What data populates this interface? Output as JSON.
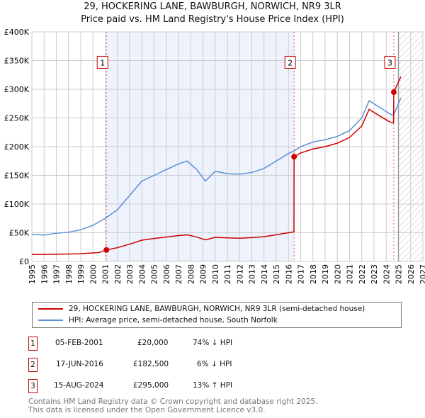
{
  "chart_data": {
    "type": "line",
    "title": "29, HOCKERING LANE, BAWBURGH, NORWICH, NR9 3LR",
    "subtitle": "Price paid vs. HM Land Registry's House Price Index (HPI)",
    "xlim": [
      1995,
      2027
    ],
    "ylim": [
      0,
      400000
    ],
    "x_ticks": [
      "1995",
      "1996",
      "1997",
      "1998",
      "1999",
      "2000",
      "2001",
      "2002",
      "2003",
      "2004",
      "2005",
      "2006",
      "2007",
      "2008",
      "2009",
      "2010",
      "2011",
      "2012",
      "2013",
      "2014",
      "2015",
      "2016",
      "2017",
      "2018",
      "2019",
      "2020",
      "2021",
      "2022",
      "2023",
      "2024",
      "2025",
      "2026",
      "2027"
    ],
    "y_ticks": [
      "£0",
      "£50K",
      "£100K",
      "£150K",
      "£200K",
      "£250K",
      "£300K",
      "£350K",
      "£400K"
    ],
    "grid": true,
    "series": [
      {
        "name": "29, HOCKERING LANE, BAWBURGH, NORWICH, NR9 3LR (semi-detached house)",
        "color": "#cc0000",
        "points": [
          [
            1995,
            12000
          ],
          [
            1997,
            12500
          ],
          [
            1999,
            13500
          ],
          [
            2000.5,
            15500
          ],
          [
            2001.1,
            20000
          ],
          [
            2002,
            24000
          ],
          [
            2003,
            30000
          ],
          [
            2004,
            37000
          ],
          [
            2005,
            40000
          ],
          [
            2006,
            42500
          ],
          [
            2007,
            45000
          ],
          [
            2007.7,
            46500
          ],
          [
            2008.5,
            42500
          ],
          [
            2009.2,
            37500
          ],
          [
            2010,
            42000
          ],
          [
            2011,
            41000
          ],
          [
            2012,
            40500
          ],
          [
            2013,
            41500
          ],
          [
            2014,
            43000
          ],
          [
            2015,
            46500
          ],
          [
            2016,
            50000
          ],
          [
            2016.45,
            51500
          ],
          [
            2016.46,
            182500
          ],
          [
            2017,
            189000
          ],
          [
            2018,
            196000
          ],
          [
            2019,
            200000
          ],
          [
            2020,
            206000
          ],
          [
            2021,
            216000
          ],
          [
            2022,
            236000
          ],
          [
            2022.6,
            265000
          ],
          [
            2023.5,
            253000
          ],
          [
            2024.3,
            243000
          ],
          [
            2024.6,
            241000
          ],
          [
            2024.62,
            295000
          ],
          [
            2025.2,
            322000
          ]
        ]
      },
      {
        "name": "HPI: Average price, semi-detached house, South Norfolk",
        "color": "#5b8fd4",
        "points": [
          [
            1995,
            47000
          ],
          [
            1996,
            46000
          ],
          [
            1997,
            49000
          ],
          [
            1998,
            51000
          ],
          [
            1999,
            55000
          ],
          [
            2000,
            63000
          ],
          [
            2001,
            75000
          ],
          [
            2002,
            90000
          ],
          [
            2003,
            115000
          ],
          [
            2004,
            140000
          ],
          [
            2005,
            150000
          ],
          [
            2006,
            160000
          ],
          [
            2007,
            170000
          ],
          [
            2007.7,
            175000
          ],
          [
            2008.5,
            160000
          ],
          [
            2009.2,
            140000
          ],
          [
            2010,
            157000
          ],
          [
            2011,
            153000
          ],
          [
            2012,
            152000
          ],
          [
            2013,
            155000
          ],
          [
            2014,
            162000
          ],
          [
            2015,
            175000
          ],
          [
            2016,
            188000
          ],
          [
            2016.5,
            193000
          ],
          [
            2017,
            200000
          ],
          [
            2018,
            208000
          ],
          [
            2019,
            212000
          ],
          [
            2020,
            218000
          ],
          [
            2021,
            228000
          ],
          [
            2022,
            250000
          ],
          [
            2022.6,
            280000
          ],
          [
            2023.5,
            268000
          ],
          [
            2024.3,
            257000
          ],
          [
            2024.6,
            255000
          ],
          [
            2025.2,
            285000
          ]
        ]
      }
    ],
    "sales": [
      {
        "label": "1",
        "x": 2001.1,
        "y": 20000
      },
      {
        "label": "2",
        "x": 2016.46,
        "y": 182500
      },
      {
        "label": "3",
        "x": 2024.62,
        "y": 295000
      }
    ],
    "shaded_range": [
      2001.1,
      2016.46
    ],
    "forecast_from": 2025
  },
  "legend": [
    "29, HOCKERING LANE, BAWBURGH, NORWICH, NR9 3LR (semi-detached house)",
    "HPI: Average price, semi-detached house, South Norfolk"
  ],
  "table": [
    {
      "n": "1",
      "date": "05-FEB-2001",
      "price": "£20,000",
      "hpi": "74% ↓ HPI"
    },
    {
      "n": "2",
      "date": "17-JUN-2016",
      "price": "£182,500",
      "hpi": "6% ↓ HPI"
    },
    {
      "n": "3",
      "date": "15-AUG-2024",
      "price": "£295,000",
      "hpi": "13% ↑ HPI"
    }
  ],
  "footer": [
    "Contains HM Land Registry data © Crown copyright and database right 2025.",
    "This data is licensed under the Open Government Licence v3.0."
  ]
}
